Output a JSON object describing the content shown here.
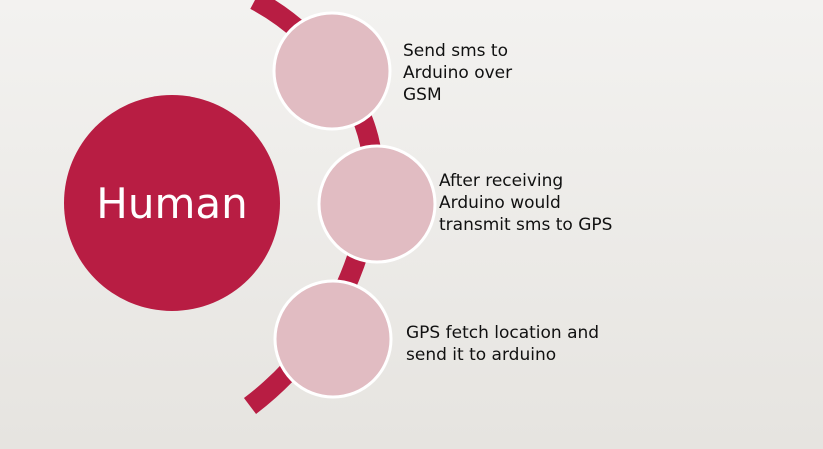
{
  "diagram": {
    "hub_label": "Human",
    "steps": [
      {
        "text": "Send sms to\nArduino over\nGSM"
      },
      {
        "text": "After receiving\nArduino would\ntransmit sms to GPS"
      },
      {
        "text": "GPS fetch location and\nsend it to arduino"
      }
    ],
    "colors": {
      "arc": "#b81d43",
      "hub_fill": "#b81d43",
      "hub_text": "#ffffff",
      "step_fill": "#e1bcc2",
      "step_stroke": "#ffffff"
    }
  }
}
